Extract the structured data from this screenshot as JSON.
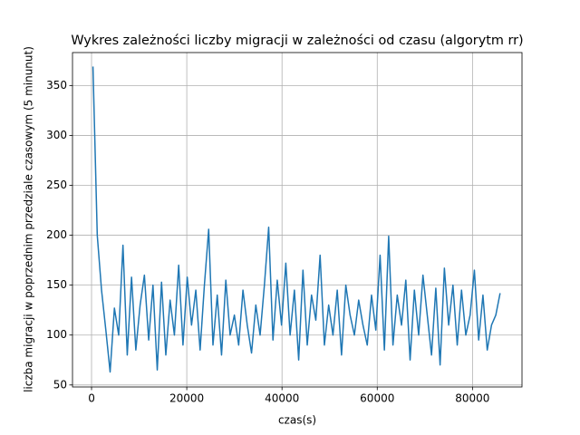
{
  "chart_data": {
    "type": "line",
    "title": "Wykres zależności liczby migracji w zależności od czasu (algorytm rr)",
    "xlabel": "czas(s)",
    "ylabel": "liczba migracji w poprzednim  przedziale czasowym (5 minunut)",
    "x": [
      300,
      1200,
      2100,
      3000,
      3900,
      4800,
      5700,
      6600,
      7500,
      8400,
      9300,
      10200,
      11100,
      12000,
      12900,
      13800,
      14700,
      15600,
      16500,
      17400,
      18300,
      19200,
      20100,
      21000,
      21900,
      22800,
      23700,
      24600,
      25500,
      26400,
      27300,
      28200,
      29100,
      30000,
      30900,
      31800,
      32700,
      33600,
      34500,
      35400,
      36300,
      37200,
      38100,
      39000,
      39900,
      40800,
      41700,
      42600,
      43500,
      44400,
      45300,
      46200,
      47100,
      48000,
      48900,
      49800,
      50700,
      51600,
      52500,
      53400,
      54300,
      55200,
      56100,
      57000,
      57900,
      58800,
      59700,
      60600,
      61500,
      62400,
      63300,
      64200,
      65100,
      66000,
      66900,
      67800,
      68700,
      69600,
      70500,
      71400,
      72300,
      73200,
      74100,
      75000,
      75900,
      76800,
      77700,
      78600,
      79500,
      80400,
      81300,
      82200,
      83100,
      84000,
      84900,
      85800
    ],
    "series": [
      {
        "color": "#1f77b4",
        "values": [
          369,
          200,
          145,
          105,
          63,
          127,
          100,
          190,
          80,
          158,
          85,
          130,
          160,
          95,
          150,
          65,
          153,
          80,
          135,
          100,
          170,
          90,
          158,
          110,
          145,
          85,
          150,
          206,
          90,
          140,
          80,
          155,
          100,
          120,
          90,
          145,
          110,
          82,
          130,
          100,
          150,
          208,
          95,
          155,
          110,
          172,
          100,
          145,
          75,
          165,
          90,
          140,
          115,
          180,
          90,
          130,
          100,
          145,
          80,
          150,
          120,
          100,
          135,
          110,
          90,
          140,
          105,
          180,
          85,
          199,
          90,
          140,
          110,
          155,
          75,
          145,
          100,
          160,
          120,
          80,
          147,
          70,
          167,
          110,
          150,
          90,
          145,
          100,
          120,
          165,
          95,
          140,
          85,
          110,
          120,
          142
        ]
      }
    ],
    "xlim": [
      -4000,
      90400
    ],
    "ylim": [
      48,
      383
    ],
    "xticks": [
      0,
      20000,
      40000,
      60000,
      80000
    ],
    "yticks": [
      50,
      100,
      150,
      200,
      250,
      300,
      350
    ],
    "grid": true
  }
}
